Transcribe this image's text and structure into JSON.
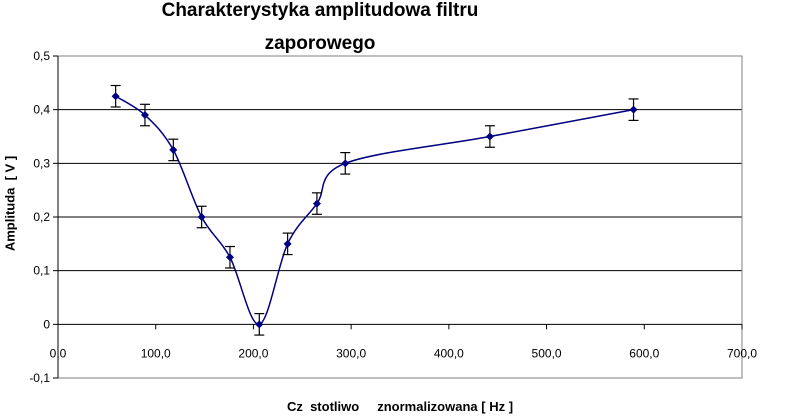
{
  "chart_data": {
    "type": "line",
    "title": "Charakterystyka amplitudowa filtru zaporowego",
    "title_lines": [
      "Charakterystyka amplitudowa filtru",
      "zaporowego"
    ],
    "xlabel": "Cz  stotliwo     znormalizowana [ Hz ]",
    "ylabel": "Amplituda  [ V ]",
    "xlim": [
      0,
      700
    ],
    "ylim": [
      -0.1,
      0.5
    ],
    "x_ticks": [
      "0,0",
      "100,0",
      "200,0",
      "300,0",
      "400,0",
      "500,0",
      "600,0",
      "700,0"
    ],
    "y_ticks": [
      "0,5",
      "0,4",
      "0,3",
      "0,2",
      "0,1",
      "0",
      "-0,1"
    ],
    "y_tick_values": [
      0.5,
      0.4,
      0.3,
      0.2,
      0.1,
      0,
      -0.1
    ],
    "grid": "horizontal",
    "legend": "none",
    "series": [
      {
        "color": "#000080",
        "x": [
          59,
          89,
          118,
          147,
          176,
          206,
          235,
          265,
          294,
          442,
          589
        ],
        "y": [
          0.425,
          0.39,
          0.325,
          0.2,
          0.125,
          0.0,
          0.15,
          0.225,
          0.3,
          0.35,
          0.4
        ],
        "error": 0.02
      }
    ]
  }
}
